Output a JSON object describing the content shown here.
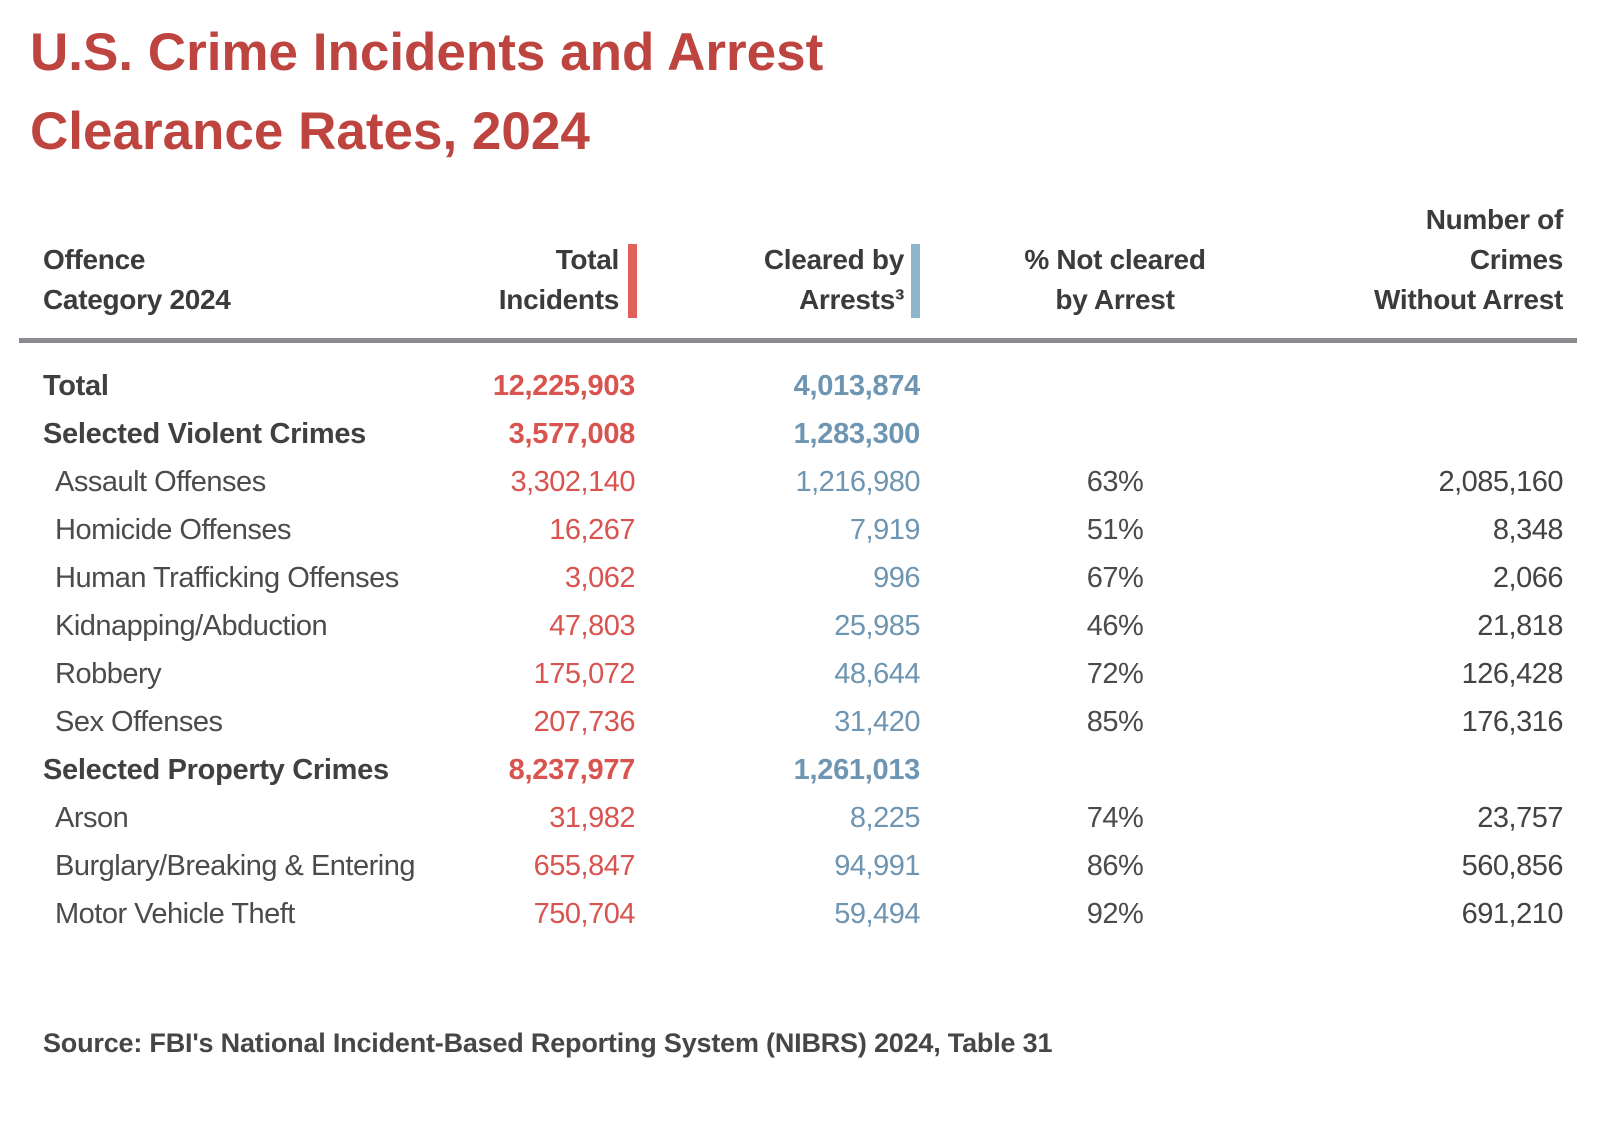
{
  "title": {
    "line1": "U.S. Crime Incidents and Arrest",
    "line2": "Clearance Rates, 2024"
  },
  "chart_data": {
    "type": "table",
    "title": "U.S. Crime Incidents and Arrest Clearance Rates, 2024",
    "columns": [
      "Offence Category 2024",
      "Total Incidents",
      "Cleared by Arrests³",
      "% Not cleared by Arrest",
      "Number of Crimes Without Arrest"
    ],
    "header_lines": {
      "offence1": "Offence",
      "offence2": "Category 2024",
      "total1": "Total",
      "total2": "Incidents",
      "cleared1": "Cleared by",
      "cleared2": "Arrests³",
      "pct1": "% Not cleared",
      "pct2": "by Arrest",
      "without1": "Number of",
      "without2": "Crimes",
      "without3": "Without Arrest"
    },
    "rows": [
      {
        "label": "Total",
        "bold": true,
        "total": "12,225,903",
        "cleared": "4,013,874",
        "pct": "",
        "without": ""
      },
      {
        "label": "Selected Violent Crimes",
        "bold": true,
        "total": "3,577,008",
        "cleared": "1,283,300",
        "pct": "",
        "without": ""
      },
      {
        "label": "Assault Offenses",
        "bold": false,
        "total": "3,302,140",
        "cleared": "1,216,980",
        "pct": "63%",
        "without": "2,085,160"
      },
      {
        "label": "Homicide Offenses",
        "bold": false,
        "total": "16,267",
        "cleared": "7,919",
        "pct": "51%",
        "without": "8,348"
      },
      {
        "label": "Human Trafficking Offenses",
        "bold": false,
        "total": "3,062",
        "cleared": "996",
        "pct": "67%",
        "without": "2,066"
      },
      {
        "label": "Kidnapping/Abduction",
        "bold": false,
        "total": "47,803",
        "cleared": "25,985",
        "pct": "46%",
        "without": "21,818"
      },
      {
        "label": "Robbery",
        "bold": false,
        "total": "175,072",
        "cleared": "48,644",
        "pct": "72%",
        "without": "126,428"
      },
      {
        "label": "Sex Offenses",
        "bold": false,
        "total": "207,736",
        "cleared": "31,420",
        "pct": "85%",
        "without": "176,316"
      },
      {
        "label": "Selected Property Crimes",
        "bold": true,
        "total": "8,237,977",
        "cleared": "1,261,013",
        "pct": "",
        "without": ""
      },
      {
        "label": "Arson",
        "bold": false,
        "total": "31,982",
        "cleared": "8,225",
        "pct": "74%",
        "without": "23,757"
      },
      {
        "label": "Burglary/Breaking & Entering",
        "bold": false,
        "total": "655,847",
        "cleared": "94,991",
        "pct": "86%",
        "without": "560,856"
      },
      {
        "label": "Motor Vehicle Theft",
        "bold": false,
        "total": "750,704",
        "cleared": "59,494",
        "pct": "92%",
        "without": "691,210"
      }
    ]
  },
  "source": "Source: FBI's National Incident-Based Reporting System (NIBRS) 2024, Table 31",
  "colors": {
    "title_red": "#BE4440",
    "value_red": "#D9534F",
    "bar_red": "#E0615B",
    "value_blue": "#6E95B2",
    "bar_blue": "#8FB5CC",
    "header_text": "#3A3B3D",
    "detail_text": "#4A4B4D",
    "rule_gray": "#8A8B8E",
    "background": "#FFFFFF"
  }
}
